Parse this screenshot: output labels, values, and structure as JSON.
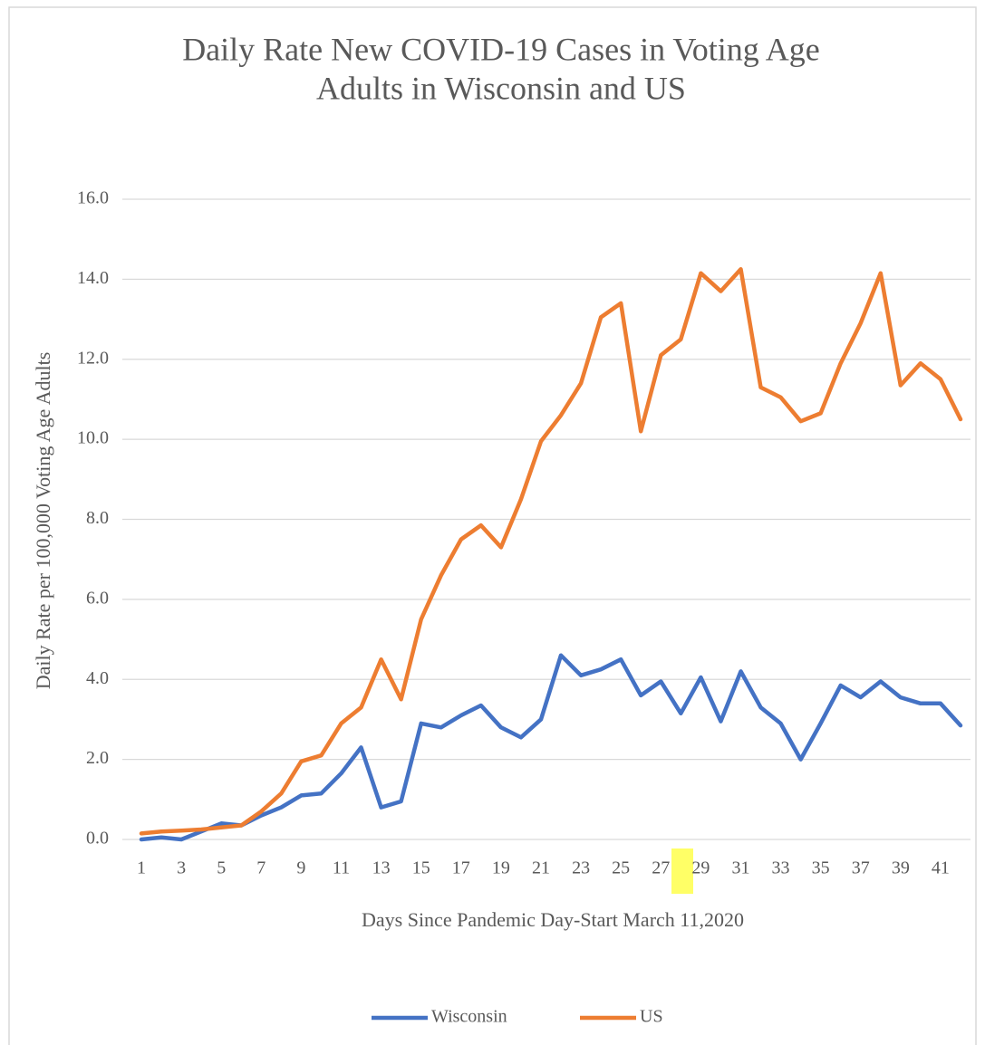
{
  "chart_data": {
    "type": "line",
    "title": [
      "Daily Rate New COVID-19 Cases in Voting Age",
      "Adults in Wisconsin and US"
    ],
    "x_label": "Days Since Pandemic Day-Start March 11,2020",
    "y_label": "Daily Rate per 100,000 Voting Age Adults",
    "categories": [
      1,
      null,
      3,
      null,
      5,
      null,
      7,
      null,
      9,
      null,
      11,
      null,
      13,
      null,
      15,
      null,
      17,
      null,
      19,
      null,
      21,
      null,
      23,
      null,
      25,
      null,
      27,
      null,
      29,
      null,
      31,
      null,
      33,
      null,
      35,
      null,
      37,
      null,
      39,
      null,
      41,
      null
    ],
    "series": [
      {
        "name": "Wisconsin",
        "color": "#4472c4",
        "values": [
          0.0,
          0.05,
          0.0,
          0.2,
          0.4,
          0.35,
          0.6,
          0.8,
          1.1,
          1.15,
          1.65,
          2.3,
          0.8,
          0.95,
          2.9,
          2.8,
          3.1,
          3.35,
          2.8,
          2.55,
          3.0,
          4.6,
          4.1,
          4.25,
          4.5,
          3.6,
          3.95,
          3.15,
          4.05,
          2.95,
          4.2,
          3.3,
          2.9,
          2.0,
          2.9,
          3.85,
          3.55,
          3.95,
          3.55,
          3.4,
          3.4,
          2.85
        ]
      },
      {
        "name": "US",
        "color": "#ed7d31",
        "values": [
          0.15,
          0.2,
          0.22,
          0.25,
          0.3,
          0.35,
          0.7,
          1.15,
          1.95,
          2.1,
          2.9,
          3.3,
          4.5,
          3.5,
          5.5,
          6.6,
          7.5,
          7.85,
          7.3,
          8.5,
          9.95,
          10.6,
          11.4,
          13.05,
          13.4,
          10.2,
          12.1,
          12.5,
          14.15,
          13.7,
          14.25,
          11.3,
          11.05,
          10.45,
          10.65,
          11.9,
          12.9,
          14.15,
          11.35,
          11.9,
          11.5,
          10.5
        ]
      }
    ],
    "ylim": [
      0,
      16
    ],
    "yticks": [
      {
        "value": 0,
        "label": "0.0"
      },
      {
        "value": 2,
        "label": "2.0"
      },
      {
        "value": 4,
        "label": "4.0"
      },
      {
        "value": 6,
        "label": "6.0"
      },
      {
        "value": 8,
        "label": "8.0"
      },
      {
        "value": 10,
        "label": "10.0"
      },
      {
        "value": 12,
        "label": "12.0"
      },
      {
        "value": 14,
        "label": "14.0"
      },
      {
        "value": 16,
        "label": "16.0"
      }
    ],
    "grid": true,
    "legend": "bottom"
  }
}
